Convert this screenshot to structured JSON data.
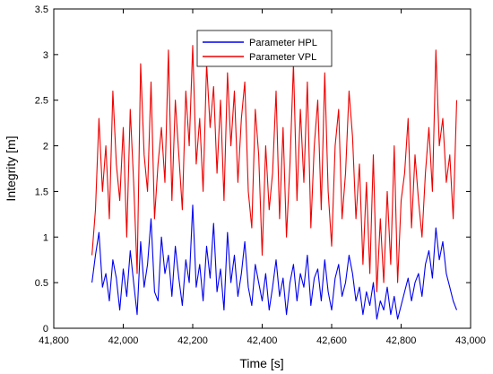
{
  "chart_data": {
    "type": "line",
    "xlabel": "Time [s]",
    "ylabel": "Integrity [m]",
    "xlim": [
      41800,
      43000
    ],
    "ylim": [
      0,
      3.5
    ],
    "xticks": [
      41800,
      42000,
      42200,
      42400,
      42600,
      42800,
      43000
    ],
    "xtick_labels": [
      "41,800",
      "42,000",
      "42,200",
      "42,400",
      "42,600",
      "42,800",
      "43,000"
    ],
    "yticks": [
      0,
      0.5,
      1,
      1.5,
      2,
      2.5,
      3,
      3.5
    ],
    "ytick_labels": [
      "0",
      "0.5",
      "1",
      "1.5",
      "2",
      "2.5",
      "3",
      "3.5"
    ],
    "grid": false,
    "legend_position": "top-center",
    "series": [
      {
        "name": "Parameter HPL",
        "color": "#0000ee",
        "x": [
          41910,
          41920,
          41930,
          41940,
          41950,
          41960,
          41970,
          41980,
          41990,
          42000,
          42010,
          42020,
          42030,
          42040,
          42050,
          42060,
          42070,
          42080,
          42090,
          42100,
          42110,
          42120,
          42130,
          42140,
          42150,
          42160,
          42170,
          42180,
          42190,
          42200,
          42210,
          42220,
          42230,
          42240,
          42250,
          42260,
          42270,
          42280,
          42290,
          42300,
          42310,
          42320,
          42330,
          42340,
          42350,
          42360,
          42370,
          42380,
          42390,
          42400,
          42410,
          42420,
          42430,
          42440,
          42450,
          42460,
          42470,
          42480,
          42490,
          42500,
          42510,
          42520,
          42530,
          42540,
          42550,
          42560,
          42570,
          42580,
          42590,
          42600,
          42610,
          42620,
          42630,
          42640,
          42650,
          42660,
          42670,
          42680,
          42690,
          42700,
          42710,
          42720,
          42730,
          42740,
          42750,
          42760,
          42770,
          42780,
          42790,
          42800,
          42810,
          42820,
          42830,
          42840,
          42850,
          42860,
          42870,
          42880,
          42890,
          42900,
          42910,
          42920,
          42930,
          42940,
          42950,
          42960
        ],
        "values": [
          0.5,
          0.8,
          1.05,
          0.45,
          0.6,
          0.3,
          0.75,
          0.55,
          0.2,
          0.65,
          0.35,
          0.85,
          0.5,
          0.15,
          0.95,
          0.45,
          0.7,
          1.2,
          0.4,
          0.3,
          1.0,
          0.6,
          0.8,
          0.35,
          0.9,
          0.55,
          0.25,
          0.75,
          0.5,
          1.35,
          0.45,
          0.7,
          0.3,
          0.9,
          0.55,
          1.15,
          0.4,
          0.65,
          0.2,
          1.05,
          0.5,
          0.8,
          0.35,
          0.6,
          0.95,
          0.45,
          0.25,
          0.7,
          0.5,
          0.3,
          0.6,
          0.2,
          0.45,
          0.75,
          0.35,
          0.55,
          0.15,
          0.5,
          0.7,
          0.3,
          0.6,
          0.45,
          0.8,
          0.25,
          0.55,
          0.65,
          0.3,
          0.75,
          0.4,
          0.2,
          0.55,
          0.7,
          0.35,
          0.5,
          0.8,
          0.6,
          0.3,
          0.45,
          0.15,
          0.4,
          0.25,
          0.5,
          0.1,
          0.3,
          0.2,
          0.45,
          0.15,
          0.35,
          0.1,
          0.25,
          0.4,
          0.55,
          0.3,
          0.5,
          0.6,
          0.35,
          0.7,
          0.85,
          0.55,
          1.1,
          0.75,
          0.95,
          0.6,
          0.45,
          0.3,
          0.2
        ]
      },
      {
        "name": "Parameter VPL",
        "color": "#ee0000",
        "x": [
          41910,
          41920,
          41930,
          41940,
          41950,
          41960,
          41970,
          41980,
          41990,
          42000,
          42010,
          42020,
          42030,
          42040,
          42050,
          42060,
          42070,
          42080,
          42090,
          42100,
          42110,
          42120,
          42130,
          42140,
          42150,
          42160,
          42170,
          42180,
          42190,
          42200,
          42210,
          42220,
          42230,
          42240,
          42250,
          42260,
          42270,
          42280,
          42290,
          42300,
          42310,
          42320,
          42330,
          42340,
          42350,
          42360,
          42370,
          42380,
          42390,
          42400,
          42410,
          42420,
          42430,
          42440,
          42450,
          42460,
          42470,
          42480,
          42490,
          42500,
          42510,
          42520,
          42530,
          42540,
          42550,
          42560,
          42570,
          42580,
          42590,
          42600,
          42610,
          42620,
          42630,
          42640,
          42650,
          42660,
          42670,
          42680,
          42690,
          42700,
          42710,
          42720,
          42730,
          42740,
          42750,
          42760,
          42770,
          42780,
          42790,
          42800,
          42810,
          42820,
          42830,
          42840,
          42850,
          42860,
          42870,
          42880,
          42890,
          42900,
          42910,
          42920,
          42930,
          42940,
          42950,
          42960
        ],
        "values": [
          0.8,
          1.3,
          2.3,
          1.5,
          2.0,
          1.2,
          2.6,
          1.8,
          1.4,
          2.2,
          1.0,
          2.4,
          1.6,
          0.6,
          2.9,
          1.9,
          1.5,
          2.7,
          1.2,
          1.8,
          2.2,
          1.6,
          3.05,
          1.4,
          2.5,
          1.9,
          1.3,
          2.6,
          2.0,
          3.1,
          1.8,
          2.3,
          1.5,
          2.9,
          2.2,
          2.65,
          1.7,
          2.5,
          1.4,
          2.8,
          2.0,
          2.6,
          1.6,
          2.3,
          2.7,
          1.5,
          1.1,
          2.4,
          1.9,
          0.8,
          2.0,
          1.3,
          1.7,
          2.6,
          1.2,
          2.2,
          1.0,
          1.8,
          2.9,
          1.4,
          2.4,
          1.6,
          2.7,
          1.1,
          2.0,
          2.5,
          1.3,
          2.8,
          1.5,
          0.9,
          2.0,
          2.4,
          1.2,
          1.7,
          2.6,
          2.1,
          1.2,
          1.8,
          0.7,
          1.6,
          0.6,
          1.9,
          0.4,
          1.2,
          0.5,
          1.5,
          0.7,
          2.0,
          0.5,
          1.4,
          1.7,
          2.3,
          1.1,
          1.9,
          1.4,
          1.0,
          1.7,
          2.2,
          1.5,
          3.05,
          2.0,
          2.3,
          1.6,
          1.9,
          1.2,
          2.5
        ]
      }
    ]
  }
}
